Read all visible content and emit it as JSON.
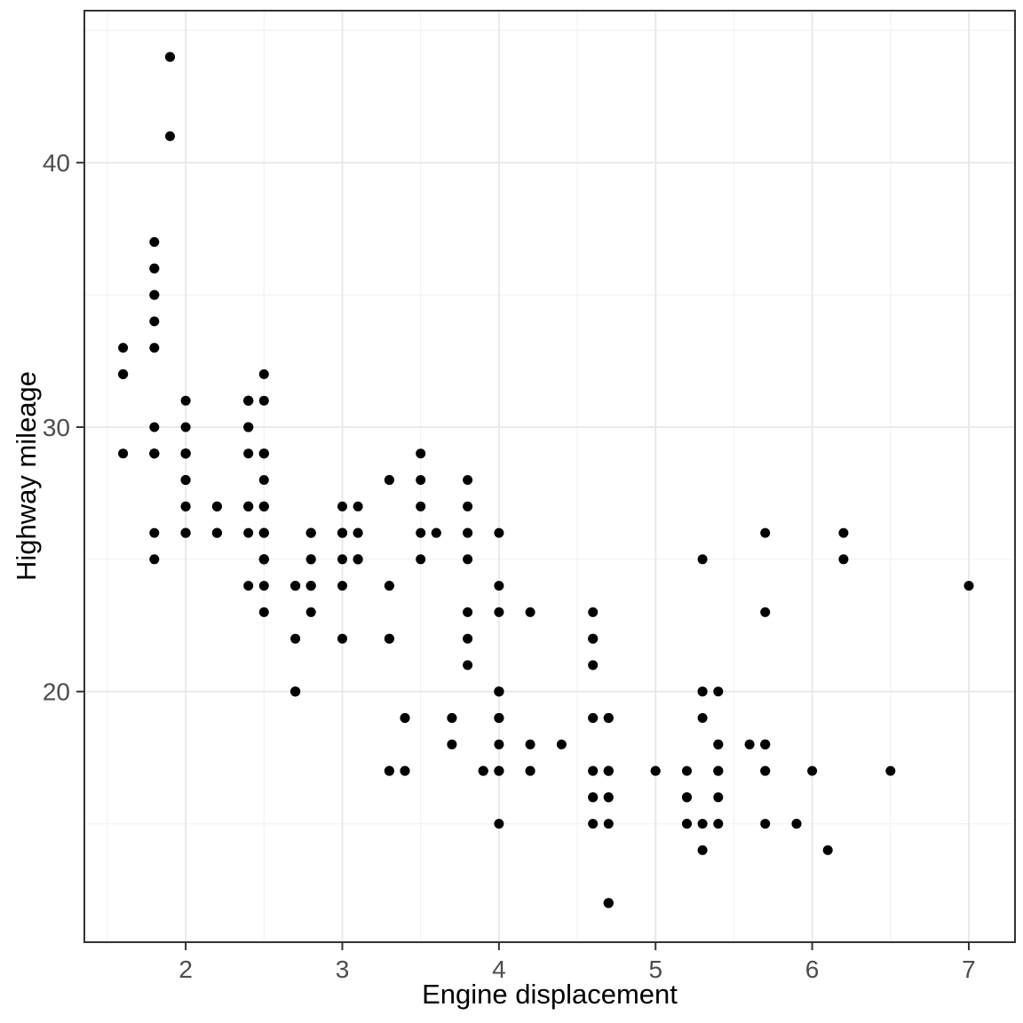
{
  "chart_data": {
    "type": "scatter",
    "title": "",
    "xlabel": "Engine displacement",
    "ylabel": "Highway mileage",
    "xlim": [
      1.353,
      7.295
    ],
    "ylim": [
      10.52,
      45.75
    ],
    "x_ticks": [
      2,
      3,
      4,
      5,
      6,
      7
    ],
    "y_ticks": [
      20,
      30,
      40
    ],
    "x_minor_ticks": [
      1.5,
      2.5,
      3.5,
      4.5,
      5.5,
      6.5
    ],
    "y_minor_ticks": [
      15,
      25,
      35,
      45
    ],
    "grid": true,
    "legend": "none",
    "point_color": "#000000",
    "panel_border_color": "#333333",
    "major_grid_color": "#e9e9e9",
    "minor_grid_color": "#f3f3f3",
    "tick_label_color": "#4d4d4d",
    "points": [
      [
        1.8,
        29
      ],
      [
        1.8,
        29
      ],
      [
        2,
        31
      ],
      [
        2,
        30
      ],
      [
        2.8,
        26
      ],
      [
        2.8,
        26
      ],
      [
        3.1,
        27
      ],
      [
        1.8,
        26
      ],
      [
        1.8,
        25
      ],
      [
        2,
        28
      ],
      [
        2,
        27
      ],
      [
        2.8,
        25
      ],
      [
        2.8,
        25
      ],
      [
        3.1,
        25
      ],
      [
        3.1,
        25
      ],
      [
        2.8,
        24
      ],
      [
        3.1,
        25
      ],
      [
        4.2,
        23
      ],
      [
        5.3,
        20
      ],
      [
        5.3,
        15
      ],
      [
        5.3,
        20
      ],
      [
        5.7,
        17
      ],
      [
        6,
        17
      ],
      [
        5.7,
        26
      ],
      [
        5.7,
        23
      ],
      [
        6.2,
        26
      ],
      [
        6.2,
        25
      ],
      [
        7,
        24
      ],
      [
        5.3,
        19
      ],
      [
        5.3,
        14
      ],
      [
        5.7,
        15
      ],
      [
        6.5,
        17
      ],
      [
        2.4,
        27
      ],
      [
        2.4,
        30
      ],
      [
        3.1,
        26
      ],
      [
        3.5,
        29
      ],
      [
        3.6,
        26
      ],
      [
        2.4,
        24
      ],
      [
        3,
        24
      ],
      [
        3.3,
        22
      ],
      [
        3.3,
        22
      ],
      [
        3.3,
        24
      ],
      [
        3.3,
        24
      ],
      [
        3.3,
        17
      ],
      [
        3.8,
        22
      ],
      [
        3.8,
        21
      ],
      [
        3.8,
        23
      ],
      [
        4,
        23
      ],
      [
        3.7,
        19
      ],
      [
        3.7,
        18
      ],
      [
        3.9,
        17
      ],
      [
        3.9,
        17
      ],
      [
        4.7,
        19
      ],
      [
        4.7,
        19
      ],
      [
        4.7,
        12
      ],
      [
        5.2,
        17
      ],
      [
        5.2,
        15
      ],
      [
        3.9,
        17
      ],
      [
        4.7,
        17
      ],
      [
        4.7,
        12
      ],
      [
        4.7,
        17
      ],
      [
        5.2,
        16
      ],
      [
        5.7,
        18
      ],
      [
        5.9,
        15
      ],
      [
        4.7,
        16
      ],
      [
        4.7,
        12
      ],
      [
        4.7,
        17
      ],
      [
        4.7,
        17
      ],
      [
        4.7,
        16
      ],
      [
        4.7,
        12
      ],
      [
        5.2,
        15
      ],
      [
        5.2,
        16
      ],
      [
        5.7,
        17
      ],
      [
        5.9,
        15
      ],
      [
        4.6,
        17
      ],
      [
        5.4,
        17
      ],
      [
        5.4,
        18
      ],
      [
        4,
        17
      ],
      [
        4,
        19
      ],
      [
        4,
        17
      ],
      [
        4,
        19
      ],
      [
        4.6,
        19
      ],
      [
        5,
        17
      ],
      [
        4.2,
        17
      ],
      [
        4.2,
        17
      ],
      [
        4.6,
        16
      ],
      [
        4.6,
        16
      ],
      [
        4.6,
        17
      ],
      [
        5.4,
        15
      ],
      [
        5.4,
        17
      ],
      [
        3.8,
        26
      ],
      [
        3.8,
        25
      ],
      [
        4,
        26
      ],
      [
        4,
        24
      ],
      [
        4.6,
        21
      ],
      [
        4.6,
        22
      ],
      [
        4.6,
        23
      ],
      [
        4.6,
        22
      ],
      [
        5.4,
        20
      ],
      [
        1.6,
        33
      ],
      [
        1.6,
        32
      ],
      [
        1.6,
        32
      ],
      [
        1.6,
        29
      ],
      [
        1.6,
        32
      ],
      [
        1.8,
        34
      ],
      [
        1.8,
        36
      ],
      [
        1.8,
        36
      ],
      [
        2,
        29
      ],
      [
        2.4,
        26
      ],
      [
        2.4,
        27
      ],
      [
        2.4,
        30
      ],
      [
        2.4,
        31
      ],
      [
        2.5,
        26
      ],
      [
        2.5,
        26
      ],
      [
        3.3,
        28
      ],
      [
        2,
        26
      ],
      [
        2,
        29
      ],
      [
        2,
        28
      ],
      [
        2,
        27
      ],
      [
        2.7,
        24
      ],
      [
        2.7,
        24
      ],
      [
        2.7,
        24
      ],
      [
        3,
        22
      ],
      [
        3.7,
        19
      ],
      [
        4,
        20
      ],
      [
        4.7,
        17
      ],
      [
        4.7,
        12
      ],
      [
        4.7,
        19
      ],
      [
        5.7,
        18
      ],
      [
        6.1,
        14
      ],
      [
        4,
        15
      ],
      [
        4.2,
        18
      ],
      [
        4.4,
        18
      ],
      [
        4.6,
        15
      ],
      [
        5.4,
        17
      ],
      [
        5.4,
        16
      ],
      [
        5.4,
        18
      ],
      [
        4,
        17
      ],
      [
        4,
        19
      ],
      [
        4.6,
        19
      ],
      [
        5,
        17
      ],
      [
        2.4,
        29
      ],
      [
        2.4,
        27
      ],
      [
        2.5,
        31
      ],
      [
        2.5,
        32
      ],
      [
        3.5,
        27
      ],
      [
        3.5,
        26
      ],
      [
        3,
        26
      ],
      [
        3,
        25
      ],
      [
        3.5,
        25
      ],
      [
        3.3,
        17
      ],
      [
        3.3,
        17
      ],
      [
        4,
        20
      ],
      [
        5.6,
        18
      ],
      [
        3.1,
        26
      ],
      [
        3.8,
        26
      ],
      [
        3.8,
        27
      ],
      [
        3.8,
        28
      ],
      [
        5.3,
        25
      ],
      [
        2.5,
        25
      ],
      [
        2.5,
        24
      ],
      [
        2.5,
        27
      ],
      [
        2.5,
        25
      ],
      [
        2.5,
        26
      ],
      [
        2.5,
        23
      ],
      [
        2.2,
        26
      ],
      [
        2.2,
        26
      ],
      [
        2.5,
        26
      ],
      [
        2.5,
        25
      ],
      [
        2.5,
        27
      ],
      [
        2.5,
        25
      ],
      [
        2.5,
        27
      ],
      [
        2.5,
        25
      ],
      [
        2.7,
        20
      ],
      [
        2.7,
        20
      ],
      [
        3.4,
        19
      ],
      [
        3.4,
        17
      ],
      [
        4,
        20
      ],
      [
        4.7,
        17
      ],
      [
        2.2,
        26
      ],
      [
        2.2,
        27
      ],
      [
        2.4,
        30
      ],
      [
        2.4,
        31
      ],
      [
        3,
        26
      ],
      [
        3,
        26
      ],
      [
        3.5,
        28
      ],
      [
        2.2,
        26
      ],
      [
        2.2,
        27
      ],
      [
        2.4,
        31
      ],
      [
        2.4,
        31
      ],
      [
        3,
        26
      ],
      [
        3,
        27
      ],
      [
        3.3,
        28
      ],
      [
        1.8,
        30
      ],
      [
        1.8,
        33
      ],
      [
        1.8,
        35
      ],
      [
        1.8,
        37
      ],
      [
        1.8,
        35
      ],
      [
        4.7,
        15
      ],
      [
        5.7,
        18
      ],
      [
        2.7,
        20
      ],
      [
        2.7,
        20
      ],
      [
        2.7,
        22
      ],
      [
        3.4,
        17
      ],
      [
        3.4,
        19
      ],
      [
        4,
        18
      ],
      [
        4,
        20
      ],
      [
        2,
        29
      ],
      [
        2,
        26
      ],
      [
        2,
        29
      ],
      [
        2,
        29
      ],
      [
        2.8,
        24
      ],
      [
        1.9,
        44
      ],
      [
        2,
        29
      ],
      [
        2,
        26
      ],
      [
        2,
        29
      ],
      [
        2,
        29
      ],
      [
        2.5,
        29
      ],
      [
        2.5,
        29
      ],
      [
        2.8,
        23
      ],
      [
        2.8,
        24
      ],
      [
        1.9,
        44
      ],
      [
        1.9,
        41
      ],
      [
        2,
        29
      ],
      [
        2,
        26
      ],
      [
        2.5,
        28
      ],
      [
        2.5,
        29
      ],
      [
        1.8,
        29
      ],
      [
        1.8,
        29
      ],
      [
        2,
        28
      ],
      [
        2,
        29
      ],
      [
        2.8,
        26
      ],
      [
        2.8,
        26
      ],
      [
        3.6,
        26
      ]
    ]
  }
}
